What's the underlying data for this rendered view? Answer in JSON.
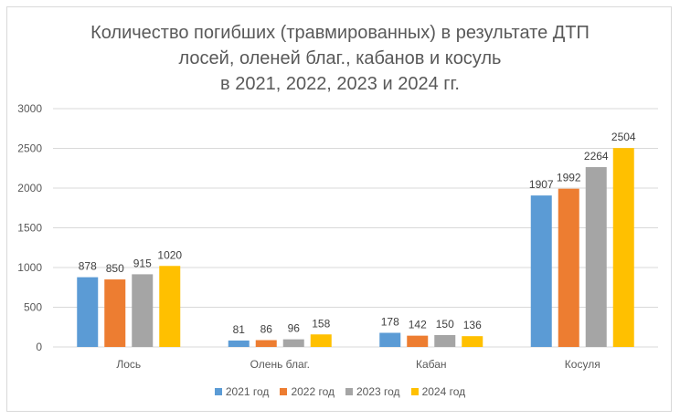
{
  "chart_data": {
    "type": "bar",
    "title": [
      "Количество погибших (травмированных) в результате ДТП",
      "лосей, оленей благ., кабанов и косуль",
      "в 2021, 2022, 2023 и 2024 гг."
    ],
    "categories": [
      "Лось",
      "Олень благ.",
      "Кабан",
      "Косуля"
    ],
    "series": [
      {
        "name": "2021 год",
        "color": "#5b9bd5",
        "values": [
          878,
          81,
          178,
          1907
        ]
      },
      {
        "name": "2022 год",
        "color": "#ed7d31",
        "values": [
          850,
          86,
          142,
          1992
        ]
      },
      {
        "name": "2023 год",
        "color": "#a5a5a5",
        "values": [
          915,
          96,
          150,
          2264
        ]
      },
      {
        "name": "2024 год",
        "color": "#ffc000",
        "values": [
          1020,
          158,
          136,
          2504
        ]
      }
    ],
    "ylim": [
      0,
      3000
    ],
    "yticks": [
      0,
      500,
      1000,
      1500,
      2000,
      2500,
      3000
    ],
    "grid": true,
    "legend": "bottom",
    "data_labels": true
  }
}
